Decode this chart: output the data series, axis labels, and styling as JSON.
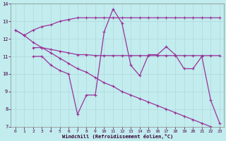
{
  "xlabel": "Windchill (Refroidissement éolien,°C)",
  "bg_color": "#c2ecee",
  "grid_color": "#b0d8dc",
  "line_color": "#993399",
  "xlim_min": -0.5,
  "xlim_max": 23.5,
  "ylim_min": 7,
  "ylim_max": 14,
  "xticks": [
    0,
    1,
    2,
    3,
    4,
    5,
    6,
    7,
    8,
    9,
    10,
    11,
    12,
    13,
    14,
    15,
    16,
    17,
    18,
    19,
    20,
    21,
    22,
    23
  ],
  "yticks": [
    7,
    8,
    9,
    10,
    11,
    12,
    13,
    14
  ],
  "line1_x": [
    0,
    1,
    2,
    3,
    4,
    5,
    6,
    7,
    8,
    9,
    10,
    11,
    12,
    13,
    14,
    15,
    16,
    17,
    18,
    19,
    20,
    21,
    22,
    23
  ],
  "line1_y": [
    12.5,
    12.2,
    12.5,
    12.7,
    12.8,
    13.0,
    13.1,
    13.2,
    13.2,
    13.2,
    13.2,
    13.2,
    13.2,
    13.2,
    13.2,
    13.2,
    13.2,
    13.2,
    13.2,
    13.2,
    13.2,
    13.2,
    13.2,
    13.2
  ],
  "line2_x": [
    2,
    3,
    4,
    5,
    6,
    7,
    8,
    9,
    10,
    11,
    12,
    13,
    14,
    15,
    16,
    17,
    18,
    19,
    20,
    21,
    22,
    23
  ],
  "line2_y": [
    11.5,
    11.5,
    11.4,
    11.3,
    11.2,
    11.1,
    11.1,
    11.05,
    11.05,
    11.05,
    11.05,
    11.05,
    11.05,
    11.05,
    11.05,
    11.05,
    11.05,
    11.05,
    11.05,
    11.05,
    11.05,
    11.05
  ],
  "line3_x": [
    2,
    3,
    4,
    5,
    6,
    7,
    8,
    9,
    10,
    11,
    12,
    13,
    14,
    15,
    16,
    17,
    18,
    19,
    20,
    21,
    22,
    23
  ],
  "line3_y": [
    11.0,
    11.0,
    10.5,
    10.2,
    10.0,
    7.7,
    8.8,
    8.8,
    12.4,
    13.7,
    12.9,
    10.5,
    9.9,
    11.1,
    11.1,
    11.55,
    11.1,
    10.3,
    10.3,
    11.0,
    8.5,
    7.2
  ],
  "line4_x": [
    0,
    1,
    2,
    3,
    4,
    5,
    6,
    7,
    8,
    9,
    10,
    11,
    12,
    13,
    14,
    15,
    16,
    17,
    18,
    19,
    20,
    21,
    22,
    23
  ],
  "line4_y": [
    12.5,
    12.2,
    11.8,
    11.5,
    11.2,
    10.9,
    10.6,
    10.3,
    10.1,
    9.8,
    9.5,
    9.3,
    9.0,
    8.8,
    8.6,
    8.4,
    8.2,
    8.0,
    7.8,
    7.6,
    7.4,
    7.2,
    7.0,
    6.8
  ]
}
